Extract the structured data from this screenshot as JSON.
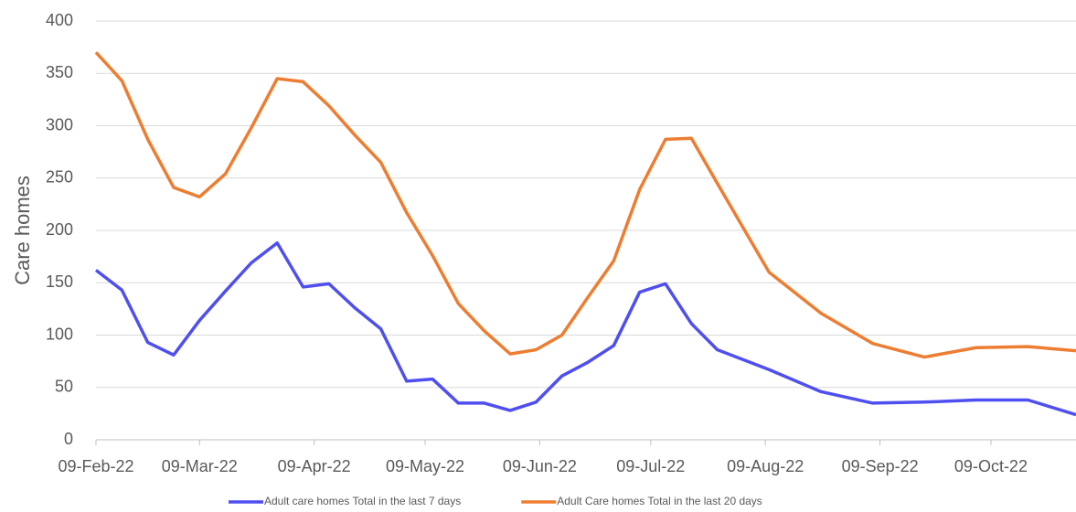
{
  "chart_data": {
    "type": "line",
    "y_label": "Care homes",
    "x": [
      "2022-02-09",
      "2022-02-16",
      "2022-02-23",
      "2022-03-02",
      "2022-03-09",
      "2022-03-16",
      "2022-03-23",
      "2022-03-30",
      "2022-04-06",
      "2022-04-13",
      "2022-04-20",
      "2022-04-27",
      "2022-05-04",
      "2022-05-11",
      "2022-05-18",
      "2022-05-25",
      "2022-06-01",
      "2022-06-08",
      "2022-06-15",
      "2022-06-22",
      "2022-06-29",
      "2022-07-06",
      "2022-07-13",
      "2022-07-20",
      "2022-07-27",
      "2022-08-10",
      "2022-08-24",
      "2022-09-07",
      "2022-09-21",
      "2022-10-05",
      "2022-10-19",
      "2022-11-01"
    ],
    "series": [
      {
        "name": "Adult care homes Total in the last 7 days",
        "color": "#4f4ff0",
        "values": [
          162,
          143,
          93,
          81,
          114,
          142,
          169,
          188,
          146,
          149,
          126,
          106,
          56,
          58,
          35,
          35,
          28,
          36,
          61,
          74,
          90,
          141,
          149,
          111,
          86,
          67,
          46,
          35,
          36,
          38,
          38,
          24
        ]
      },
      {
        "name": "Adult Care homes Total in the last 20 days",
        "color": "#ed7d31",
        "values": [
          370,
          343,
          287,
          241,
          232,
          254,
          298,
          345,
          342,
          319,
          291,
          265,
          217,
          176,
          130,
          104,
          82,
          86,
          100,
          136,
          171,
          239,
          287,
          288,
          245,
          160,
          121,
          92,
          79,
          88,
          89,
          85
        ]
      }
    ],
    "xlim": [
      "2022-02-09",
      "2022-11-01"
    ],
    "xticks": [
      {
        "value": "2022-02-09",
        "label": "09-Feb-22"
      },
      {
        "value": "2022-03-09",
        "label": "09-Mar-22"
      },
      {
        "value": "2022-04-09",
        "label": "09-Apr-22"
      },
      {
        "value": "2022-05-09",
        "label": "09-May-22"
      },
      {
        "value": "2022-06-09",
        "label": "09-Jun-22"
      },
      {
        "value": "2022-07-09",
        "label": "09-Jul-22"
      },
      {
        "value": "2022-08-09",
        "label": "09-Aug-22"
      },
      {
        "value": "2022-09-09",
        "label": "09-Sep-22"
      },
      {
        "value": "2022-10-09",
        "label": "09-Oct-22"
      }
    ],
    "ylim": [
      0,
      400
    ],
    "yticks": [
      0,
      50,
      100,
      150,
      200,
      250,
      300,
      350,
      400
    ],
    "grid": true,
    "legend": "bottom"
  }
}
